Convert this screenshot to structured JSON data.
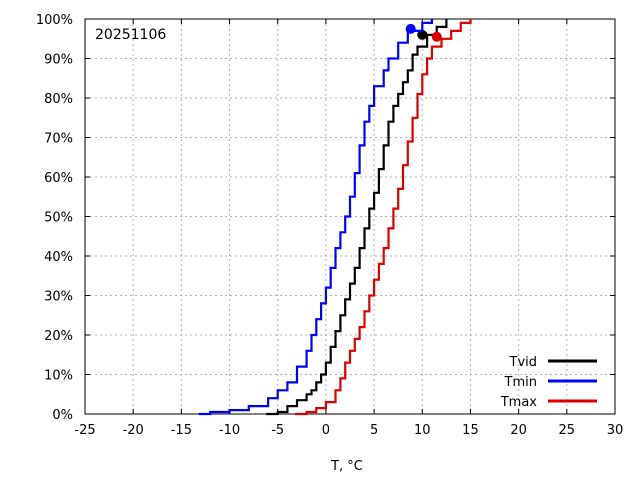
{
  "chart_data": {
    "type": "line",
    "title": "",
    "annotation": "20251106",
    "xlabel": "T, °C",
    "ylabel": "",
    "xlim": [
      -25,
      30
    ],
    "ylim": [
      0,
      100
    ],
    "xticks": [
      -25,
      -20,
      -15,
      -10,
      -5,
      0,
      5,
      10,
      15,
      20,
      25,
      30
    ],
    "xtick_labels": [
      "-25",
      "-20",
      "-15",
      "-10",
      "-5",
      "0",
      "5",
      "10",
      "15",
      "20",
      "25",
      "30"
    ],
    "yticks": [
      0,
      10,
      20,
      30,
      40,
      50,
      60,
      70,
      80,
      90,
      100
    ],
    "ytick_labels": [
      "0%",
      "10%",
      "20%",
      "30%",
      "40%",
      "50%",
      "60%",
      "70%",
      "80%",
      "90%",
      "100%"
    ],
    "grid": true,
    "legend_position": "bottom-right",
    "series": [
      {
        "name": "Tvid",
        "color": "#000000",
        "points": [
          [
            -6.2,
            0
          ],
          [
            -5,
            0.5
          ],
          [
            -4,
            2
          ],
          [
            -3,
            3.5
          ],
          [
            -2,
            5
          ],
          [
            -1.5,
            6
          ],
          [
            -1,
            8
          ],
          [
            -0.5,
            10
          ],
          [
            0,
            13
          ],
          [
            0.5,
            17
          ],
          [
            1,
            21
          ],
          [
            1.5,
            25
          ],
          [
            2,
            29
          ],
          [
            2.5,
            33
          ],
          [
            3,
            37
          ],
          [
            3.5,
            42
          ],
          [
            4,
            47
          ],
          [
            4.5,
            52
          ],
          [
            5,
            56
          ],
          [
            5.5,
            62
          ],
          [
            6,
            68
          ],
          [
            6.5,
            74
          ],
          [
            7,
            78
          ],
          [
            7.5,
            81
          ],
          [
            8,
            84
          ],
          [
            8.5,
            87
          ],
          [
            9,
            91
          ],
          [
            9.5,
            93
          ],
          [
            10.5,
            96
          ],
          [
            11.5,
            98
          ],
          [
            12.5,
            100
          ]
        ],
        "marker": [
          10,
          96
        ]
      },
      {
        "name": "Tmin",
        "color": "#0000ff",
        "points": [
          [
            -13.2,
            0
          ],
          [
            -12,
            0.5
          ],
          [
            -10,
            1
          ],
          [
            -8,
            2
          ],
          [
            -6,
            4
          ],
          [
            -5,
            6
          ],
          [
            -4,
            8
          ],
          [
            -3,
            12
          ],
          [
            -2,
            16
          ],
          [
            -1.5,
            20
          ],
          [
            -1,
            24
          ],
          [
            -0.5,
            28
          ],
          [
            0,
            32
          ],
          [
            0.5,
            37
          ],
          [
            1,
            42
          ],
          [
            1.5,
            46
          ],
          [
            2,
            50
          ],
          [
            2.5,
            55
          ],
          [
            3,
            61
          ],
          [
            3.5,
            68
          ],
          [
            4,
            74
          ],
          [
            4.5,
            78
          ],
          [
            5,
            83
          ],
          [
            6,
            87
          ],
          [
            6.5,
            90
          ],
          [
            7.5,
            94
          ],
          [
            8.5,
            97
          ],
          [
            10,
            99
          ],
          [
            11,
            100
          ]
        ],
        "marker": [
          8.8,
          97.5
        ]
      },
      {
        "name": "Tmax",
        "color": "#dd0000",
        "points": [
          [
            -3.2,
            0
          ],
          [
            -2,
            0.5
          ],
          [
            -1,
            1.5
          ],
          [
            0,
            3
          ],
          [
            1,
            6
          ],
          [
            1.5,
            9
          ],
          [
            2,
            13
          ],
          [
            2.5,
            16
          ],
          [
            3,
            19
          ],
          [
            3.5,
            22
          ],
          [
            4,
            26
          ],
          [
            4.5,
            30
          ],
          [
            5,
            34
          ],
          [
            5.5,
            38
          ],
          [
            6,
            42
          ],
          [
            6.5,
            47
          ],
          [
            7,
            52
          ],
          [
            7.5,
            57
          ],
          [
            8,
            63
          ],
          [
            8.5,
            69
          ],
          [
            9,
            75
          ],
          [
            9.5,
            81
          ],
          [
            10,
            86
          ],
          [
            10.5,
            90
          ],
          [
            11,
            93
          ],
          [
            12,
            95
          ],
          [
            13,
            97
          ],
          [
            14,
            99
          ],
          [
            15,
            100
          ]
        ],
        "marker": [
          11.5,
          95.5
        ]
      }
    ]
  }
}
